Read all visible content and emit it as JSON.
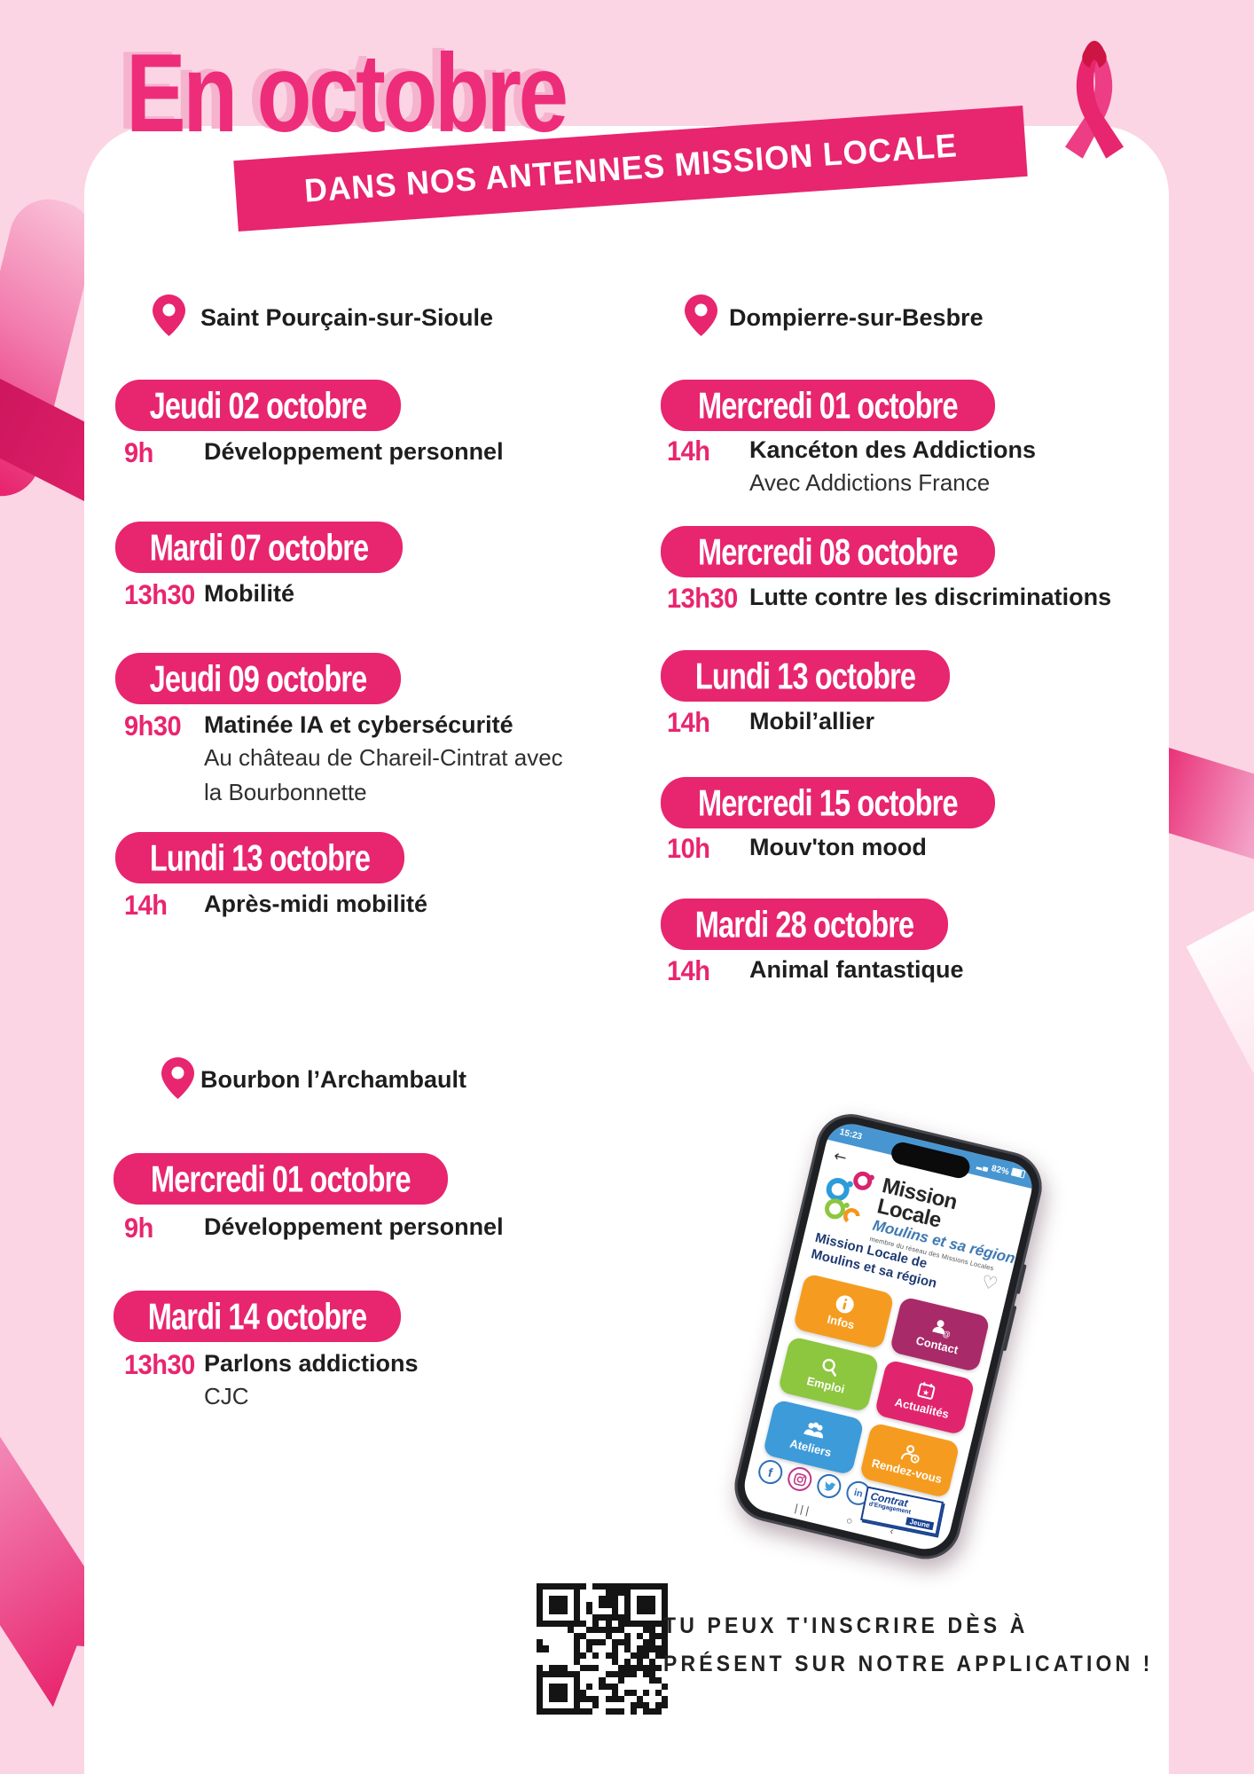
{
  "poster": {
    "title": "En octobre",
    "banner": "DANS NOS ANTENNES MISSION LOCALE",
    "cta_line1": "TU PEUX T'INSCRIRE DÈS À",
    "cta_line2": "PRÉSENT SUR NOTRE APPLICATION !"
  },
  "colors": {
    "accent_pink": "#E8256F",
    "background_pink": "#FBD5E3",
    "ribbon_fold_red": "#CE1443",
    "text_dark": "#1E1E1E",
    "status_bar_blue": "#4796D2"
  },
  "sections": [
    {
      "location": "Saint Pourçain-sur-Sioule",
      "events": [
        {
          "date": "Jeudi 02 octobre",
          "time": "9h",
          "title": "Développement personnel",
          "details": []
        },
        {
          "date": "Mardi 07 octobre",
          "time": "13h30",
          "title": "Mobilité",
          "details": []
        },
        {
          "date": "Jeudi 09 octobre",
          "time": "9h30",
          "title": "Matinée IA et cybersécurité",
          "details": [
            "Au château de Chareil-Cintrat avec",
            "la Bourbonnette"
          ]
        },
        {
          "date": "Lundi 13 octobre",
          "time": "14h",
          "title": "Après-midi mobilité",
          "details": []
        }
      ]
    },
    {
      "location": "Dompierre-sur-Besbre",
      "events": [
        {
          "date": "Mercredi 01 octobre",
          "time": "14h",
          "title": "Kancéton des Addictions",
          "details": [
            "Avec Addictions France"
          ]
        },
        {
          "date": "Mercredi 08 octobre",
          "time": "13h30",
          "title": "Lutte contre les discriminations",
          "details": []
        },
        {
          "date": "Lundi 13 octobre",
          "time": "14h",
          "title": "Mobil’allier",
          "details": []
        },
        {
          "date": "Mercredi 15 octobre",
          "time": "10h",
          "title": "Mouv'ton mood",
          "details": []
        },
        {
          "date": "Mardi 28 octobre",
          "time": "14h",
          "title": "Animal fantastique",
          "details": []
        }
      ]
    },
    {
      "location": "Bourbon l’Archambault",
      "events": [
        {
          "date": "Mercredi 01 octobre",
          "time": "9h",
          "title": "Développement personnel",
          "details": []
        },
        {
          "date": "Mardi 14 octobre",
          "time": "13h30",
          "title": "Parlons addictions",
          "details": [
            "CJC"
          ]
        }
      ]
    }
  ],
  "phone": {
    "status_time": "15:23",
    "status_battery": "82%",
    "back_arrow": "←",
    "logo": {
      "title": "Mission Locale",
      "subtitle": "Moulins et sa région",
      "tagline": "membre du réseau des Missions Locales"
    },
    "app_title": "Mission Locale de Moulins et sa région",
    "heart": "♡",
    "tiles": [
      {
        "label": "Infos",
        "color": "#F59C20",
        "icon": "info-icon"
      },
      {
        "label": "Contact",
        "color": "#A92A68",
        "icon": "contact-icon"
      },
      {
        "label": "Emploi",
        "color": "#8DC63F",
        "icon": "search-icon"
      },
      {
        "label": "Actualités",
        "color": "#E0256E",
        "icon": "calendar-icon"
      },
      {
        "label": "Ateliers",
        "color": "#3D9BD9",
        "icon": "people-icon"
      },
      {
        "label": "Rendez-vous",
        "color": "#F59C20",
        "icon": "appointment-icon"
      }
    ],
    "social": {
      "facebook": "f",
      "linkedin": "in"
    },
    "cej_badge": {
      "line1": "Contrat",
      "line2": "d'Engagement",
      "line3": "Jeune"
    },
    "nav": {
      "recents": "| | |",
      "home": "○",
      "back": "‹"
    }
  }
}
